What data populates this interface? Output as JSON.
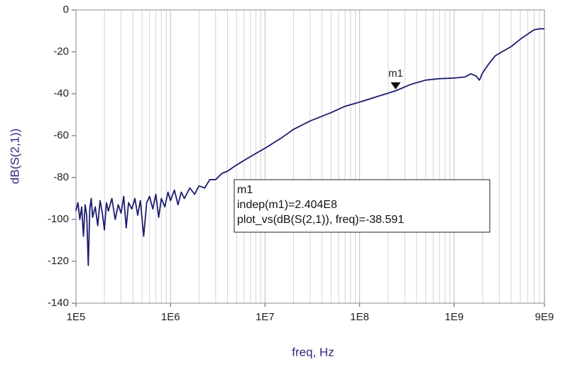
{
  "chart_data": {
    "type": "line",
    "x_label": "freq, Hz",
    "y_label": "dB(S(2,1))",
    "x_scale": "log",
    "xlim": [
      100000,
      9000000000
    ],
    "xticks": [
      {
        "value": 100000,
        "label": "1E5"
      },
      {
        "value": 1000000,
        "label": "1E6"
      },
      {
        "value": 10000000,
        "label": "1E7"
      },
      {
        "value": 100000000,
        "label": "1E8"
      },
      {
        "value": 1000000000,
        "label": "1E9"
      },
      {
        "value": 9000000000,
        "label": "9E9"
      }
    ],
    "ylim": [
      -140,
      0
    ],
    "yticks": [
      0,
      -20,
      -40,
      -60,
      -80,
      -100,
      -120,
      -140
    ],
    "grid": true,
    "x": [
      100000,
      105000,
      110000,
      115000,
      120000,
      125000,
      130000,
      135000,
      140000,
      145000,
      150000,
      160000,
      170000,
      180000,
      190000,
      200000,
      210000,
      220000,
      240000,
      260000,
      280000,
      300000,
      320000,
      340000,
      360000,
      390000,
      420000,
      450000,
      480000,
      520000,
      560000,
      600000,
      650000,
      700000,
      750000,
      800000,
      870000,
      940000,
      1000000,
      1100000,
      1200000,
      1300000,
      1400000,
      1600000,
      1800000,
      2000000,
      2300000,
      2600000,
      3000000,
      3500000,
      4000000,
      5000000,
      7000000,
      10000000,
      15000000,
      20000000,
      30000000,
      50000000,
      70000000,
      100000000,
      150000000,
      240400000,
      350000000,
      500000000,
      700000000,
      1000000000,
      1300000000,
      1500000000,
      1700000000,
      1850000000,
      2000000000,
      2300000000,
      2700000000,
      3200000000,
      4000000000,
      5000000000,
      6000000000,
      7000000000,
      8000000000,
      9000000000
    ],
    "series": [
      {
        "color": "#1c1c70",
        "values": [
          -96,
          -92,
          -100,
          -94,
          -108,
          -93,
          -98,
          -122,
          -95,
          -90,
          -99,
          -94,
          -103,
          -91,
          -97,
          -105,
          -92,
          -96,
          -90,
          -100,
          -93,
          -97,
          -89,
          -104,
          -92,
          -95,
          -90,
          -98,
          -91,
          -108,
          -92,
          -89,
          -95,
          -88,
          -99,
          -90,
          -94,
          -87,
          -91,
          -86,
          -93,
          -87,
          -90,
          -85,
          -88,
          -84,
          -85,
          -81,
          -81,
          -78,
          -77,
          -74,
          -70,
          -66,
          -61,
          -57,
          -53,
          -49,
          -46,
          -44,
          -41.5,
          -38.6,
          -35.5,
          -33.5,
          -32.8,
          -32.5,
          -32,
          -30.5,
          -31.5,
          -33.5,
          -30,
          -26,
          -22,
          -20,
          -17.5,
          -14,
          -11.5,
          -9.5,
          -9,
          -9
        ]
      }
    ],
    "marker": {
      "label": "m1",
      "x": 240400000,
      "y": -38.591
    },
    "annotation": [
      "m1",
      "indep(m1)=2.404E8",
      "plot_vs(dB(S(2,1)), freq)=-38.591"
    ]
  }
}
